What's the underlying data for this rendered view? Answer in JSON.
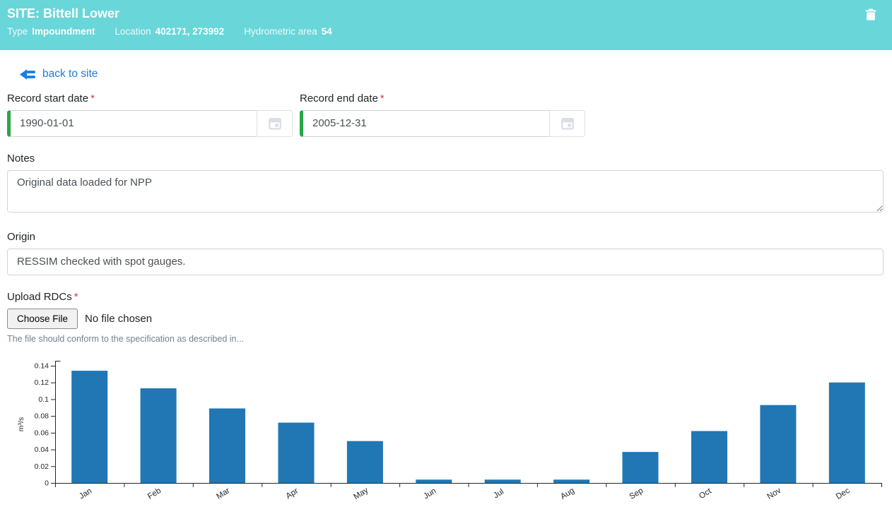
{
  "colors": {
    "header_bg": "#69d6d9",
    "link_blue": "#1a7ce5",
    "valid_green": "#28a745",
    "required_red": "#dc3545",
    "bar_blue": "#2077b4"
  },
  "header": {
    "title": "SITE: Bittell Lower",
    "type_label": "Type",
    "type_value": "Impoundment",
    "location_label": "Location",
    "location_value": "402171, 273992",
    "hydrometric_label": "Hydrometric area",
    "hydrometric_value": "54"
  },
  "back_link": {
    "label": "back to site"
  },
  "form": {
    "required_mark": "*",
    "start_date": {
      "label": "Record start date",
      "value": "1990-01-01"
    },
    "end_date": {
      "label": "Record end date",
      "value": "2005-12-31"
    },
    "notes": {
      "label": "Notes",
      "value": "Original data loaded for NPP"
    },
    "origin": {
      "label": "Origin",
      "value": "RESSIM checked with spot gauges."
    },
    "upload": {
      "label": "Upload RDCs",
      "button_label": "Choose File",
      "status_text": "No file chosen",
      "help_text": "The file should conform to the specification as described in..."
    }
  },
  "chart_data": {
    "type": "bar",
    "categories": [
      "Jan",
      "Feb",
      "Mar",
      "Apr",
      "May",
      "Jun",
      "Jul",
      "Aug",
      "Sep",
      "Oct",
      "Nov",
      "Dec"
    ],
    "values": [
      0.134,
      0.113,
      0.089,
      0.072,
      0.05,
      0.004,
      0.004,
      0.004,
      0.037,
      0.062,
      0.093,
      0.12
    ],
    "title": "",
    "xlabel": "",
    "ylabel": "m³/s",
    "ylim": [
      0,
      0.14
    ],
    "yticks": [
      0,
      0.02,
      0.04,
      0.06,
      0.08,
      0.1,
      0.12,
      0.14
    ],
    "grid": false,
    "legend": "none",
    "bar_color": "#2077b4",
    "axis_color": "#262626"
  }
}
